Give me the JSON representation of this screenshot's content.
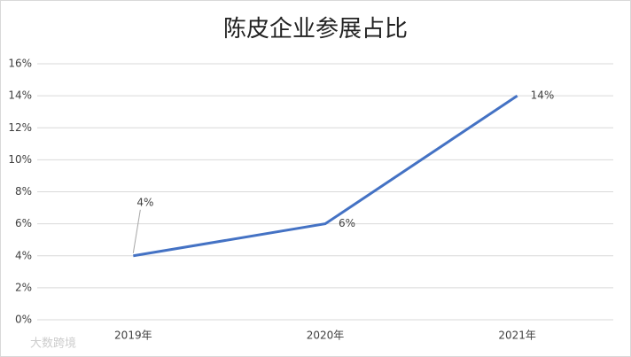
{
  "chart_data": {
    "type": "line",
    "title": "陈皮企业参展占比",
    "categories": [
      "2019年",
      "2020年",
      "2021年"
    ],
    "series": [
      {
        "name": "陈皮企业参展占比",
        "color": "#4472c4",
        "values": [
          4,
          6,
          14
        ],
        "value_labels": [
          "4%",
          "6%",
          "14%"
        ]
      }
    ],
    "ylim": [
      0,
      16
    ],
    "yticks": [
      {
        "value": 0,
        "label": "0%"
      },
      {
        "value": 2,
        "label": "2%"
      },
      {
        "value": 4,
        "label": "4%"
      },
      {
        "value": 6,
        "label": "6%"
      },
      {
        "value": 8,
        "label": "8%"
      },
      {
        "value": 10,
        "label": "10%"
      },
      {
        "value": 12,
        "label": "12%"
      },
      {
        "value": 14,
        "label": "14%"
      },
      {
        "value": 16,
        "label": "16%"
      }
    ],
    "grid": true,
    "watermark": "大数跨境"
  }
}
